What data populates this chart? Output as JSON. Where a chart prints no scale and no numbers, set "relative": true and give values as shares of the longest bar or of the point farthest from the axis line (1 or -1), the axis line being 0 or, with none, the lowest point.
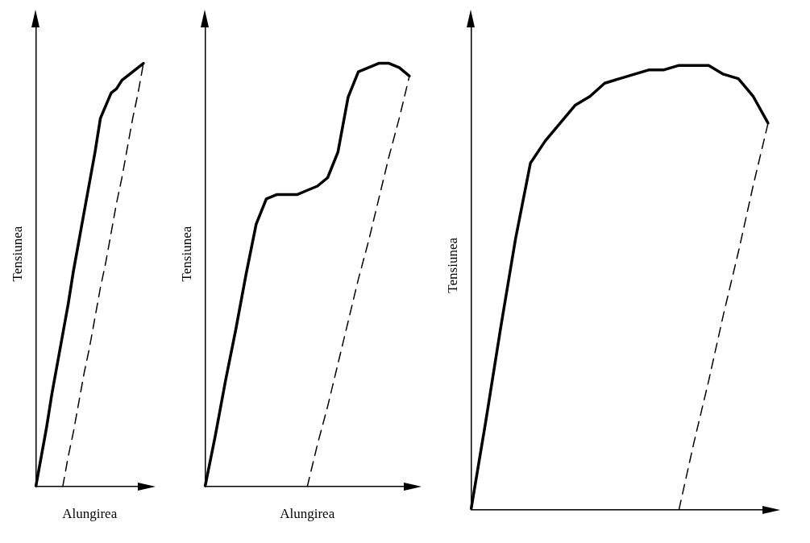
{
  "chart_data": [
    {
      "type": "line",
      "relative": true,
      "ylabel": "Tensiunea",
      "xlabel": "Alungirea",
      "categories": [
        null,
        null,
        null,
        null,
        null,
        null,
        null,
        null,
        null,
        null,
        null,
        null,
        null,
        null,
        null,
        null,
        null,
        null,
        null,
        null,
        null
      ],
      "series": [
        {
          "color": "#000000",
          "line_style": "solid",
          "values": [
            0,
            0.07,
            0.14,
            0.22,
            0.29,
            0.36,
            0.43,
            0.51,
            0.58,
            0.65,
            0.72,
            0.79,
            0.87,
            0.9,
            0.93,
            0.94,
            0.96,
            0.97,
            0.98,
            0.99,
            1
          ]
        },
        {
          "color": "#000000",
          "line_style": "dashed",
          "values": [
            null,
            null,
            null,
            null,
            null,
            0,
            0.07,
            0.13,
            0.2,
            0.27,
            0.33,
            0.4,
            0.47,
            0.53,
            0.6,
            0.67,
            0.73,
            0.8,
            0.87,
            0.93,
            1
          ]
        }
      ]
    },
    {
      "type": "line",
      "relative": true,
      "ylabel": "Tensiunea",
      "xlabel": "Alungirea",
      "categories": [
        null,
        null,
        null,
        null,
        null,
        null,
        null,
        null,
        null,
        null,
        null,
        null,
        null,
        null,
        null,
        null,
        null,
        null,
        null,
        null,
        null
      ],
      "series": [
        {
          "color": "#000000",
          "line_style": "solid",
          "values": [
            0,
            0.12,
            0.25,
            0.37,
            0.5,
            0.62,
            0.68,
            0.69,
            0.69,
            0.69,
            0.7,
            0.71,
            0.73,
            0.79,
            0.92,
            0.98,
            0.99,
            1,
            1,
            0.99,
            0.97
          ]
        },
        {
          "color": "#000000",
          "line_style": "dashed",
          "values": [
            null,
            null,
            null,
            null,
            null,
            null,
            null,
            null,
            null,
            null,
            0,
            0.1,
            0.19,
            0.29,
            0.39,
            0.49,
            0.58,
            0.68,
            0.78,
            0.87,
            0.97
          ]
        }
      ]
    },
    {
      "type": "line",
      "relative": true,
      "ylabel": "Tensiunea",
      "categories": [
        null,
        null,
        null,
        null,
        null,
        null,
        null,
        null,
        null,
        null,
        null,
        null,
        null,
        null,
        null,
        null,
        null,
        null,
        null,
        null,
        null
      ],
      "series": [
        {
          "color": "#000000",
          "line_style": "solid",
          "values": [
            0,
            0.2,
            0.41,
            0.61,
            0.78,
            0.83,
            0.87,
            0.91,
            0.93,
            0.96,
            0.97,
            0.98,
            0.99,
            0.99,
            1,
            1,
            1,
            0.98,
            0.97,
            0.93,
            0.87
          ]
        },
        {
          "color": "#000000",
          "line_style": "dashed",
          "values": [
            null,
            null,
            null,
            null,
            null,
            null,
            null,
            null,
            null,
            null,
            null,
            null,
            null,
            null,
            0,
            0.15,
            0.29,
            0.44,
            0.58,
            0.73,
            0.87
          ]
        }
      ]
    }
  ]
}
